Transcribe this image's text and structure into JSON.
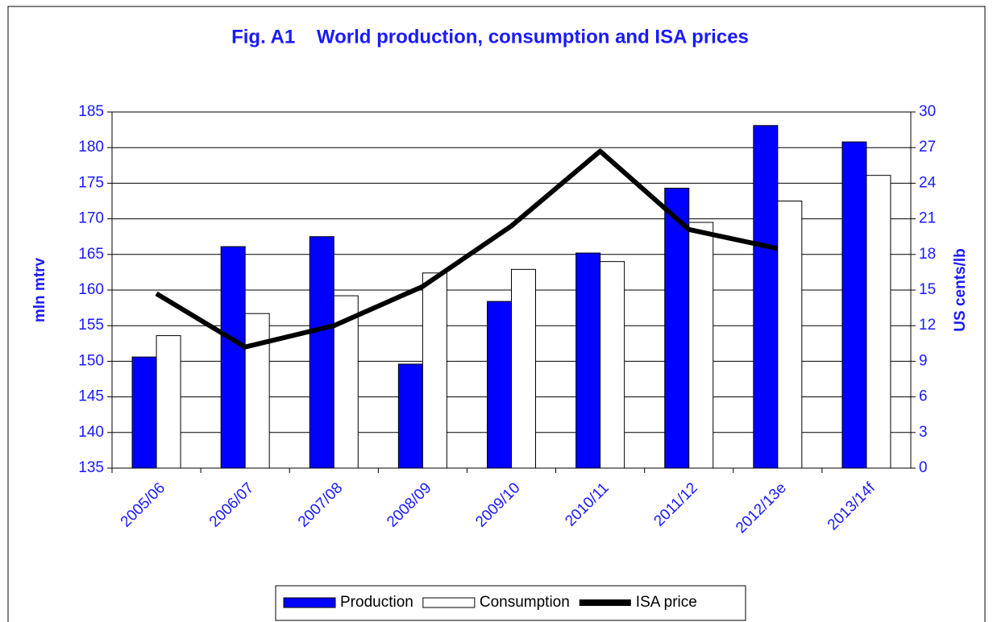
{
  "chart_data": {
    "type": "bar",
    "title": "Fig. A1    World production, consumption and ISA prices",
    "y_label": "mln mtrv",
    "y2_label": "US cents/lb",
    "categories": [
      "2005/06",
      "2006/07",
      "2007/08",
      "2008/09",
      "2009/10",
      "2010/11",
      "2011/12",
      "2012/13e",
      "2013/14f"
    ],
    "series": [
      {
        "name": "Production",
        "type": "bar",
        "color": "#0000ff",
        "values": [
          150.6,
          166.1,
          167.5,
          149.6,
          158.4,
          165.2,
          174.3,
          183.1,
          180.8
        ]
      },
      {
        "name": "Consumption",
        "type": "bar",
        "color": "#ffffff",
        "values": [
          153.6,
          156.7,
          159.2,
          162.4,
          162.9,
          164.0,
          169.5,
          172.5,
          176.1
        ]
      },
      {
        "name": "ISA price",
        "type": "line",
        "axis": "y2",
        "color": "#000000",
        "values": [
          14.7,
          10.2,
          12.0,
          15.3,
          20.4,
          26.7,
          20.1,
          18.5,
          null
        ]
      }
    ],
    "ylim": [
      135,
      185
    ],
    "yticks": [
      135,
      140,
      145,
      150,
      155,
      160,
      165,
      170,
      175,
      180,
      185
    ],
    "y2lim": [
      0,
      30
    ],
    "y2ticks": [
      0,
      3,
      6,
      9,
      12,
      15,
      18,
      21,
      24,
      27,
      30
    ],
    "grid": true,
    "legend": "bottom"
  }
}
